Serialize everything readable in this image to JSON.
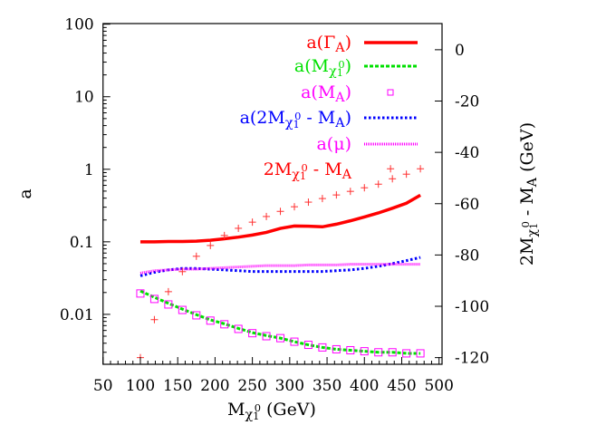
{
  "chart_data": {
    "type": "line",
    "xlabel": [
      {
        "t": "M"
      },
      {
        "t": "χ",
        "s": "sub"
      },
      {
        "t": "1",
        "s": "subsub"
      },
      {
        "t": "0",
        "s": "supr"
      },
      {
        "t": " (GeV)"
      }
    ],
    "ylabel": "a",
    "y2label": [
      {
        "t": "2M"
      },
      {
        "t": "χ",
        "s": "sub"
      },
      {
        "t": "1",
        "s": "subsub"
      },
      {
        "t": "0",
        "s": "supr"
      },
      {
        "t": " - M"
      },
      {
        "t": "A",
        "s": "sub"
      },
      {
        "t": " (GeV)"
      }
    ],
    "xlim": [
      50,
      504
    ],
    "ylim": [
      0.00205,
      102
    ],
    "yscale": "log",
    "y2lim": [
      -122.6,
      10.2
    ],
    "xticks": [
      50,
      100,
      150,
      200,
      250,
      300,
      350,
      400,
      450,
      500
    ],
    "yticks": [
      {
        "v": 100,
        "label": "100"
      },
      {
        "v": 10,
        "label": "10"
      },
      {
        "v": 1,
        "label": "1"
      },
      {
        "v": 0.1,
        "label": "0.1"
      },
      {
        "v": 0.01,
        "label": "0.01"
      }
    ],
    "y2ticks": [
      0,
      -20,
      -40,
      -60,
      -80,
      -100,
      -120
    ],
    "grid": false,
    "legend_placement": "top-right",
    "x": [
      100,
      118.75,
      137.5,
      156.25,
      175,
      193.75,
      212.5,
      231.25,
      250,
      268.75,
      287.5,
      306.25,
      325,
      343.75,
      362.5,
      381.25,
      400,
      418.75,
      437.5,
      456.25,
      475
    ],
    "series": [
      {
        "name": [
          {
            "t": "a(Γ"
          },
          {
            "t": "A",
            "s": "sub"
          },
          {
            "t": ")"
          }
        ],
        "color": "#ff0000",
        "style": "solid",
        "axis": "left",
        "values": [
          0.1,
          0.1,
          0.101,
          0.101,
          0.102,
          0.105,
          0.11,
          0.116,
          0.124,
          0.135,
          0.153,
          0.165,
          0.164,
          0.161,
          0.175,
          0.195,
          0.22,
          0.25,
          0.29,
          0.34,
          0.44
        ]
      },
      {
        "name": [
          {
            "t": "a(M"
          },
          {
            "t": "χ",
            "s": "sub"
          },
          {
            "t": "1",
            "s": "subsub"
          },
          {
            "t": "0",
            "s": "supr"
          },
          {
            "t": ")"
          }
        ],
        "color": "#00e000",
        "style": "dashed",
        "axis": "left",
        "values": [
          0.021,
          0.0172,
          0.0142,
          0.0118,
          0.0099,
          0.0084,
          0.0074,
          0.0064,
          0.0056,
          0.0051,
          0.0047,
          0.0042,
          0.0038,
          0.0035,
          0.0033,
          0.0032,
          0.0031,
          0.003,
          0.003,
          0.0029,
          0.0029
        ]
      },
      {
        "name": [
          {
            "t": "a(M"
          },
          {
            "t": "A",
            "s": "sub"
          },
          {
            "t": ")"
          }
        ],
        "color": "#ff00ff",
        "style": "squares",
        "axis": "left",
        "values": [
          0.0194,
          0.0163,
          0.0137,
          0.0115,
          0.0097,
          0.0082,
          0.0073,
          0.0063,
          0.0055,
          0.005,
          0.0047,
          0.0042,
          0.0038,
          0.0035,
          0.0033,
          0.0032,
          0.0031,
          0.003,
          0.003,
          0.0029,
          0.0029
        ]
      },
      {
        "name": [
          {
            "t": "a(2M"
          },
          {
            "t": "χ",
            "s": "sub"
          },
          {
            "t": "1",
            "s": "subsub"
          },
          {
            "t": "0",
            "s": "supr"
          },
          {
            "t": " - M"
          },
          {
            "t": "A",
            "s": "sub"
          },
          {
            "t": ")"
          }
        ],
        "color": "#0000ff",
        "style": "dotted",
        "axis": "left",
        "values": [
          0.034,
          0.038,
          0.041,
          0.043,
          0.043,
          0.042,
          0.041,
          0.04,
          0.039,
          0.039,
          0.039,
          0.039,
          0.039,
          0.039,
          0.04,
          0.041,
          0.043,
          0.046,
          0.05,
          0.055,
          0.061
        ]
      },
      {
        "name": [
          {
            "t": "a(μ)"
          }
        ],
        "color": "#ff00ff",
        "style": "fine",
        "axis": "left",
        "values": [
          0.037,
          0.04,
          0.041,
          0.042,
          0.042,
          0.043,
          0.044,
          0.045,
          0.046,
          0.047,
          0.047,
          0.047,
          0.048,
          0.048,
          0.048,
          0.049,
          0.049,
          0.049,
          0.049,
          0.049,
          0.049
        ]
      },
      {
        "name": [
          {
            "t": "2M"
          },
          {
            "t": "χ",
            "s": "sub"
          },
          {
            "t": "1",
            "s": "subsub"
          },
          {
            "t": "0",
            "s": "supr"
          },
          {
            "t": " - M"
          },
          {
            "t": "A",
            "s": "sub"
          }
        ],
        "color": "#ff3030",
        "style": "crosses",
        "axis": "right",
        "x": [
          100,
          118.75,
          137.5,
          156.25,
          175,
          193.75,
          212.5,
          231.25,
          250,
          268.75,
          287.5,
          306.25,
          325,
          343.75,
          362.5,
          381.25,
          400,
          418.75,
          435,
          437.5,
          456.25,
          475
        ],
        "values": [
          -120,
          -105.2,
          -94.3,
          -86.5,
          -80.5,
          -76.3,
          -72.4,
          -69.6,
          -67.2,
          -65,
          -63,
          -61.2,
          -59.4,
          -58,
          -56.6,
          -55.2,
          -53.8,
          -52.4,
          -46.4,
          -50.3,
          -48.5,
          -46.4
        ]
      }
    ]
  }
}
